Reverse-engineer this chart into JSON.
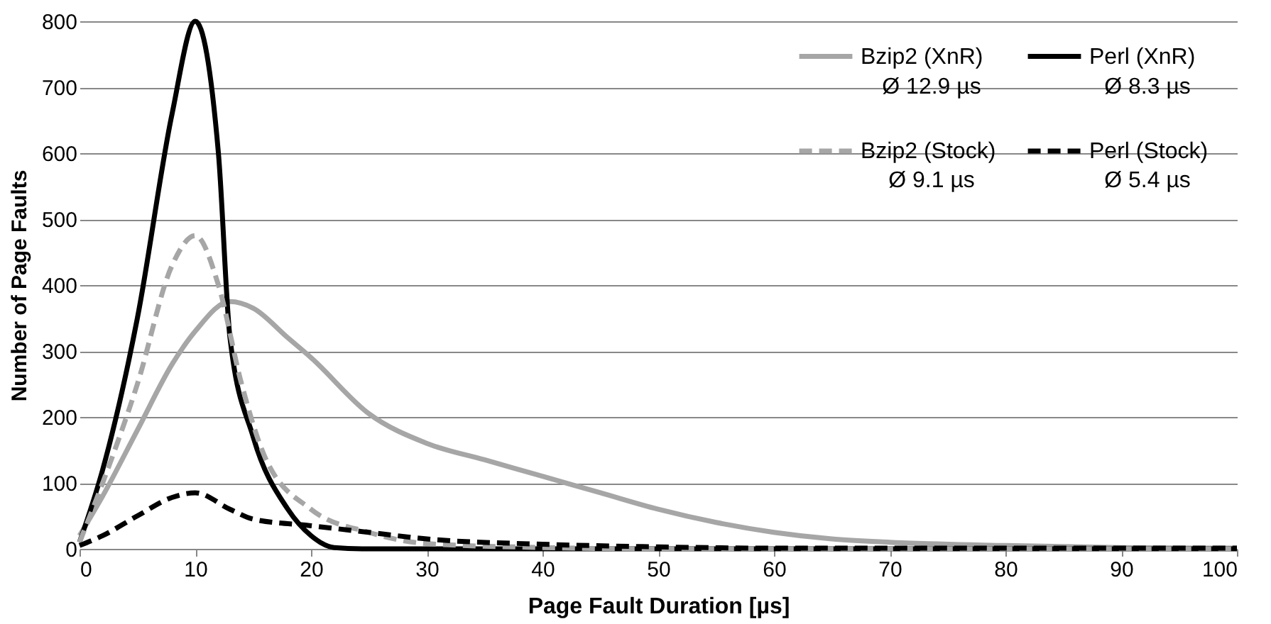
{
  "chart_data": {
    "type": "line",
    "xlabel": "Page Fault Duration [µs]",
    "ylabel": "Number of Page Faults",
    "xlim": [
      0,
      100
    ],
    "ylim": [
      0,
      800
    ],
    "xticks": [
      0,
      10,
      20,
      30,
      40,
      50,
      60,
      70,
      80,
      90,
      100
    ],
    "yticks": [
      0,
      100,
      200,
      300,
      400,
      500,
      600,
      700,
      800
    ],
    "grid": "y",
    "legend": "top right",
    "series": [
      {
        "name": "Bzip2 (XnR)",
        "color": "#a6a6a6",
        "line_style": "solid",
        "x": [
          0,
          2,
          5,
          8,
          10,
          13,
          15,
          18,
          20,
          25,
          30,
          35,
          40,
          45,
          50,
          55,
          60,
          65,
          70,
          80,
          90,
          100
        ],
        "values": [
          20,
          80,
          180,
          280,
          330,
          375,
          365,
          320,
          290,
          205,
          160,
          135,
          110,
          85,
          60,
          40,
          25,
          15,
          10,
          5,
          2,
          1
        ]
      },
      {
        "name": "Perl (XnR)",
        "color": "#000000",
        "line_style": "solid",
        "x": [
          0,
          2,
          5,
          8,
          10,
          12,
          13,
          15,
          18,
          20,
          22,
          25,
          30,
          40,
          50,
          60,
          70,
          80,
          90,
          100
        ],
        "values": [
          10,
          120,
          350,
          660,
          800,
          600,
          320,
          170,
          60,
          20,
          2,
          0,
          0,
          0,
          0,
          0,
          0,
          0,
          0,
          0
        ]
      },
      {
        "name": "Bzip2 (Stock)",
        "color": "#a6a6a6",
        "line_style": "dashed",
        "x": [
          0,
          2,
          5,
          8,
          10,
          12,
          14,
          16,
          20,
          25,
          30,
          40,
          50,
          60,
          70,
          80,
          90,
          100
        ],
        "values": [
          10,
          100,
          250,
          430,
          475,
          400,
          250,
          140,
          60,
          25,
          8,
          2,
          0,
          0,
          0,
          0,
          0,
          0
        ]
      },
      {
        "name": "Perl (Stock)",
        "color": "#000000",
        "line_style": "dashed",
        "x": [
          0,
          2,
          5,
          8,
          10,
          13,
          15,
          20,
          25,
          30,
          40,
          50,
          60,
          70,
          80,
          90,
          100
        ],
        "values": [
          5,
          20,
          50,
          78,
          85,
          60,
          45,
          35,
          25,
          15,
          7,
          3,
          1,
          1,
          1,
          1,
          1
        ]
      }
    ],
    "annotations": [
      "Ø 12.9 µs",
      "Ø 8.3 µs",
      "Ø 9.1 µs",
      "Ø 5.4 µs"
    ]
  }
}
